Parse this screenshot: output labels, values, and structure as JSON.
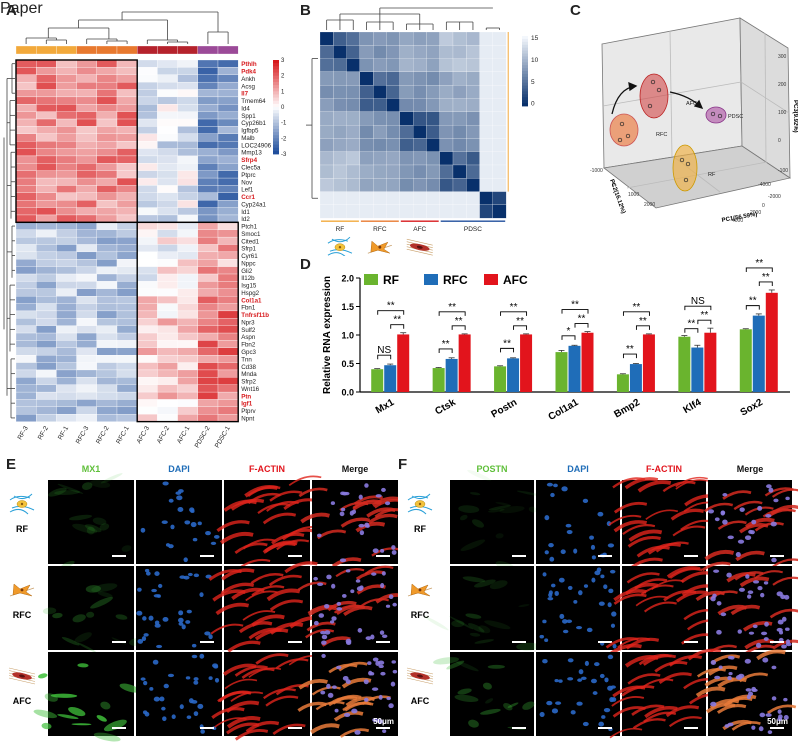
{
  "panels": {
    "a": "A",
    "b": "B",
    "c": "C",
    "d": "D",
    "e": "E",
    "f": "F"
  },
  "heatmap": {
    "columns": [
      "RF-3",
      "RF-2",
      "RF-1",
      "RFC-3",
      "RFC-2",
      "RFC-1",
      "AFC-3",
      "AFC-2",
      "AFC-1",
      "PDSC-2",
      "PDSC-1"
    ],
    "group_colors": [
      "#f2a93b",
      "#f2a93b",
      "#f2a93b",
      "#e8792f",
      "#e8792f",
      "#e8792f",
      "#b5222c",
      "#b5222c",
      "#b5222c",
      "#9b4a98",
      "#9b4a98"
    ],
    "genes": [
      {
        "name": "Pthlh",
        "red": true
      },
      {
        "name": "Pdk4",
        "red": true
      },
      {
        "name": "Ankh",
        "red": false
      },
      {
        "name": "Acsg",
        "red": false
      },
      {
        "name": "Il7",
        "red": true
      },
      {
        "name": "Tmem64",
        "red": false
      },
      {
        "name": "Id4",
        "red": false
      },
      {
        "name": "Spp1",
        "red": false
      },
      {
        "name": "Cyp26b1",
        "red": false
      },
      {
        "name": "Igfbp5",
        "red": false
      },
      {
        "name": "Malb",
        "red": false
      },
      {
        "name": "LOC24906",
        "red": false
      },
      {
        "name": "Mmp13",
        "red": false
      },
      {
        "name": "Sfrp4",
        "red": true
      },
      {
        "name": "Clec5a",
        "red": false
      },
      {
        "name": "Ptprc",
        "red": false
      },
      {
        "name": "Nov",
        "red": false
      },
      {
        "name": "Lef1",
        "red": false
      },
      {
        "name": "Ccr1",
        "red": true
      },
      {
        "name": "Cyp24a1",
        "red": false
      },
      {
        "name": "Id1",
        "red": false
      },
      {
        "name": "Id2",
        "red": false
      },
      {
        "name": "Ptch1",
        "red": false
      },
      {
        "name": "Smoc1",
        "red": false
      },
      {
        "name": "Cited1",
        "red": false
      },
      {
        "name": "Sfrp1",
        "red": false
      },
      {
        "name": "Cyr61",
        "red": false
      },
      {
        "name": "Nppc",
        "red": false
      },
      {
        "name": "Gli2",
        "red": false
      },
      {
        "name": "Il12b",
        "red": false
      },
      {
        "name": "Isg15",
        "red": false
      },
      {
        "name": "Hspg2",
        "red": false
      },
      {
        "name": "Col1a1",
        "red": true
      },
      {
        "name": "Fbn1",
        "red": false
      },
      {
        "name": "Tnfrsf11b",
        "red": true
      },
      {
        "name": "Npr3",
        "red": false
      },
      {
        "name": "Sulf2",
        "red": false
      },
      {
        "name": "Aspn",
        "red": false
      },
      {
        "name": "Fbn2",
        "red": false
      },
      {
        "name": "Gpc3",
        "red": false
      },
      {
        "name": "Tnn",
        "red": false
      },
      {
        "name": "Cd38",
        "red": false
      },
      {
        "name": "Mnda",
        "red": false
      },
      {
        "name": "Sfrp2",
        "red": false
      },
      {
        "name": "Wnt16",
        "red": false
      },
      {
        "name": "Ptn",
        "red": true
      },
      {
        "name": "Igf1",
        "red": true
      },
      {
        "name": "Ptprv",
        "red": false
      },
      {
        "name": "Npnt",
        "red": false
      }
    ],
    "scale_ticks": [
      "3",
      "2",
      "1",
      "0",
      "-1",
      "-2",
      "-3"
    ],
    "colors": {
      "high": "#d7191c",
      "mid": "#ffffff",
      "low": "#1f4e9c",
      "gene_red": "#d7191c"
    }
  },
  "correlation": {
    "labels": [
      "RF",
      "RFC",
      "AFC",
      "PDSC"
    ],
    "label_colors": [
      "#f2a93b",
      "#e8792f",
      "#d7191c",
      "#1f4e9c"
    ],
    "scale_ticks": [
      "15",
      "10",
      "5",
      "0"
    ]
  },
  "pca": {
    "groups": [
      "RFC",
      "AFC",
      "PDSC",
      "RF"
    ],
    "axis_labels": {
      "x": "PC1(56.59%)",
      "y": "PC2(16.12%)",
      "z": "PC3(9.92%)"
    },
    "x_ticks": [
      "4000",
      "2000",
      "0",
      "-2000",
      "-4000"
    ],
    "y_ticks": [
      "-1000",
      "0",
      "1000",
      "2000"
    ],
    "z_ticks": [
      "-100",
      "0",
      "100",
      "200",
      "300"
    ]
  },
  "chart_data": {
    "type": "bar",
    "title": "",
    "xlabel": "",
    "ylabel": "Relative RNA expression",
    "ylim": [
      0,
      2.0
    ],
    "yticks": [
      "0.0",
      "0.5",
      "1.0",
      "1.5",
      "2.0"
    ],
    "categories": [
      "Mx1",
      "Ctsk",
      "Postn",
      "Col1a1",
      "Bmp2",
      "Klf4",
      "Sox2"
    ],
    "series": [
      {
        "name": "RF",
        "color": "#6ab42e",
        "values": [
          0.4,
          0.42,
          0.45,
          0.7,
          0.31,
          0.97,
          1.1
        ],
        "errors": [
          0.01,
          0.01,
          0.01,
          0.03,
          0.01,
          0.02,
          0.01
        ]
      },
      {
        "name": "RFC",
        "color": "#1f6db8",
        "values": [
          0.47,
          0.58,
          0.59,
          0.81,
          0.49,
          0.78,
          1.34
        ],
        "errors": [
          0.02,
          0.02,
          0.01,
          0.01,
          0.01,
          0.04,
          0.03
        ]
      },
      {
        "name": "AFC",
        "color": "#e2141c",
        "values": [
          1.01,
          1.01,
          1.01,
          1.04,
          1.01,
          1.04,
          1.74
        ],
        "errors": [
          0.03,
          0.01,
          0.01,
          0.02,
          0.01,
          0.08,
          0.05
        ]
      }
    ],
    "significance": [
      {
        "cat": 0,
        "from": 0,
        "to": 1,
        "label": "NS",
        "level": 1
      },
      {
        "cat": 0,
        "from": 1,
        "to": 2,
        "label": "**",
        "level": 2
      },
      {
        "cat": 0,
        "from": 0,
        "to": 2,
        "label": "**",
        "level": 3
      },
      {
        "cat": 1,
        "from": 0,
        "to": 1,
        "label": "**",
        "level": 1
      },
      {
        "cat": 1,
        "from": 1,
        "to": 2,
        "label": "**",
        "level": 2
      },
      {
        "cat": 1,
        "from": 0,
        "to": 2,
        "label": "**",
        "level": 3
      },
      {
        "cat": 2,
        "from": 0,
        "to": 1,
        "label": "**",
        "level": 1
      },
      {
        "cat": 2,
        "from": 1,
        "to": 2,
        "label": "**",
        "level": 2
      },
      {
        "cat": 2,
        "from": 0,
        "to": 2,
        "label": "**",
        "level": 3
      },
      {
        "cat": 3,
        "from": 0,
        "to": 1,
        "label": "*",
        "level": 1
      },
      {
        "cat": 3,
        "from": 1,
        "to": 2,
        "label": "**",
        "level": 2
      },
      {
        "cat": 3,
        "from": 0,
        "to": 2,
        "label": "**",
        "level": 3
      },
      {
        "cat": 4,
        "from": 0,
        "to": 1,
        "label": "**",
        "level": 1
      },
      {
        "cat": 4,
        "from": 1,
        "to": 2,
        "label": "**",
        "level": 2
      },
      {
        "cat": 4,
        "from": 0,
        "to": 2,
        "label": "**",
        "level": 3
      },
      {
        "cat": 5,
        "from": 0,
        "to": 1,
        "label": "**",
        "level": 1
      },
      {
        "cat": 5,
        "from": 1,
        "to": 2,
        "label": "**",
        "level": 2
      },
      {
        "cat": 5,
        "from": 0,
        "to": 2,
        "label": "NS",
        "level": 3
      },
      {
        "cat": 6,
        "from": 0,
        "to": 1,
        "label": "**",
        "level": 1
      },
      {
        "cat": 6,
        "from": 1,
        "to": 2,
        "label": "**",
        "level": 2
      },
      {
        "cat": 6,
        "from": 0,
        "to": 2,
        "label": "**",
        "level": 3
      }
    ]
  },
  "panel_e": {
    "headers": [
      {
        "text": "MX1",
        "color": "#5fbf3a"
      },
      {
        "text": "DAPI",
        "color": "#1f6db8"
      },
      {
        "text": "F-ACTIN",
        "color": "#e2141c"
      },
      {
        "text": "Merge",
        "color": "#111111"
      }
    ],
    "rows": [
      "RF",
      "RFC",
      "AFC"
    ],
    "scale_bar": "50μm"
  },
  "panel_f": {
    "headers": [
      {
        "text": "POSTN",
        "color": "#5fbf3a"
      },
      {
        "text": "DAPI",
        "color": "#1f6db8"
      },
      {
        "text": "F-ACTIN",
        "color": "#e2141c"
      },
      {
        "text": "Merge",
        "color": "#111111"
      }
    ],
    "rows": [
      "RF",
      "RFC",
      "AFC"
    ],
    "scale_bar": "50μm"
  }
}
